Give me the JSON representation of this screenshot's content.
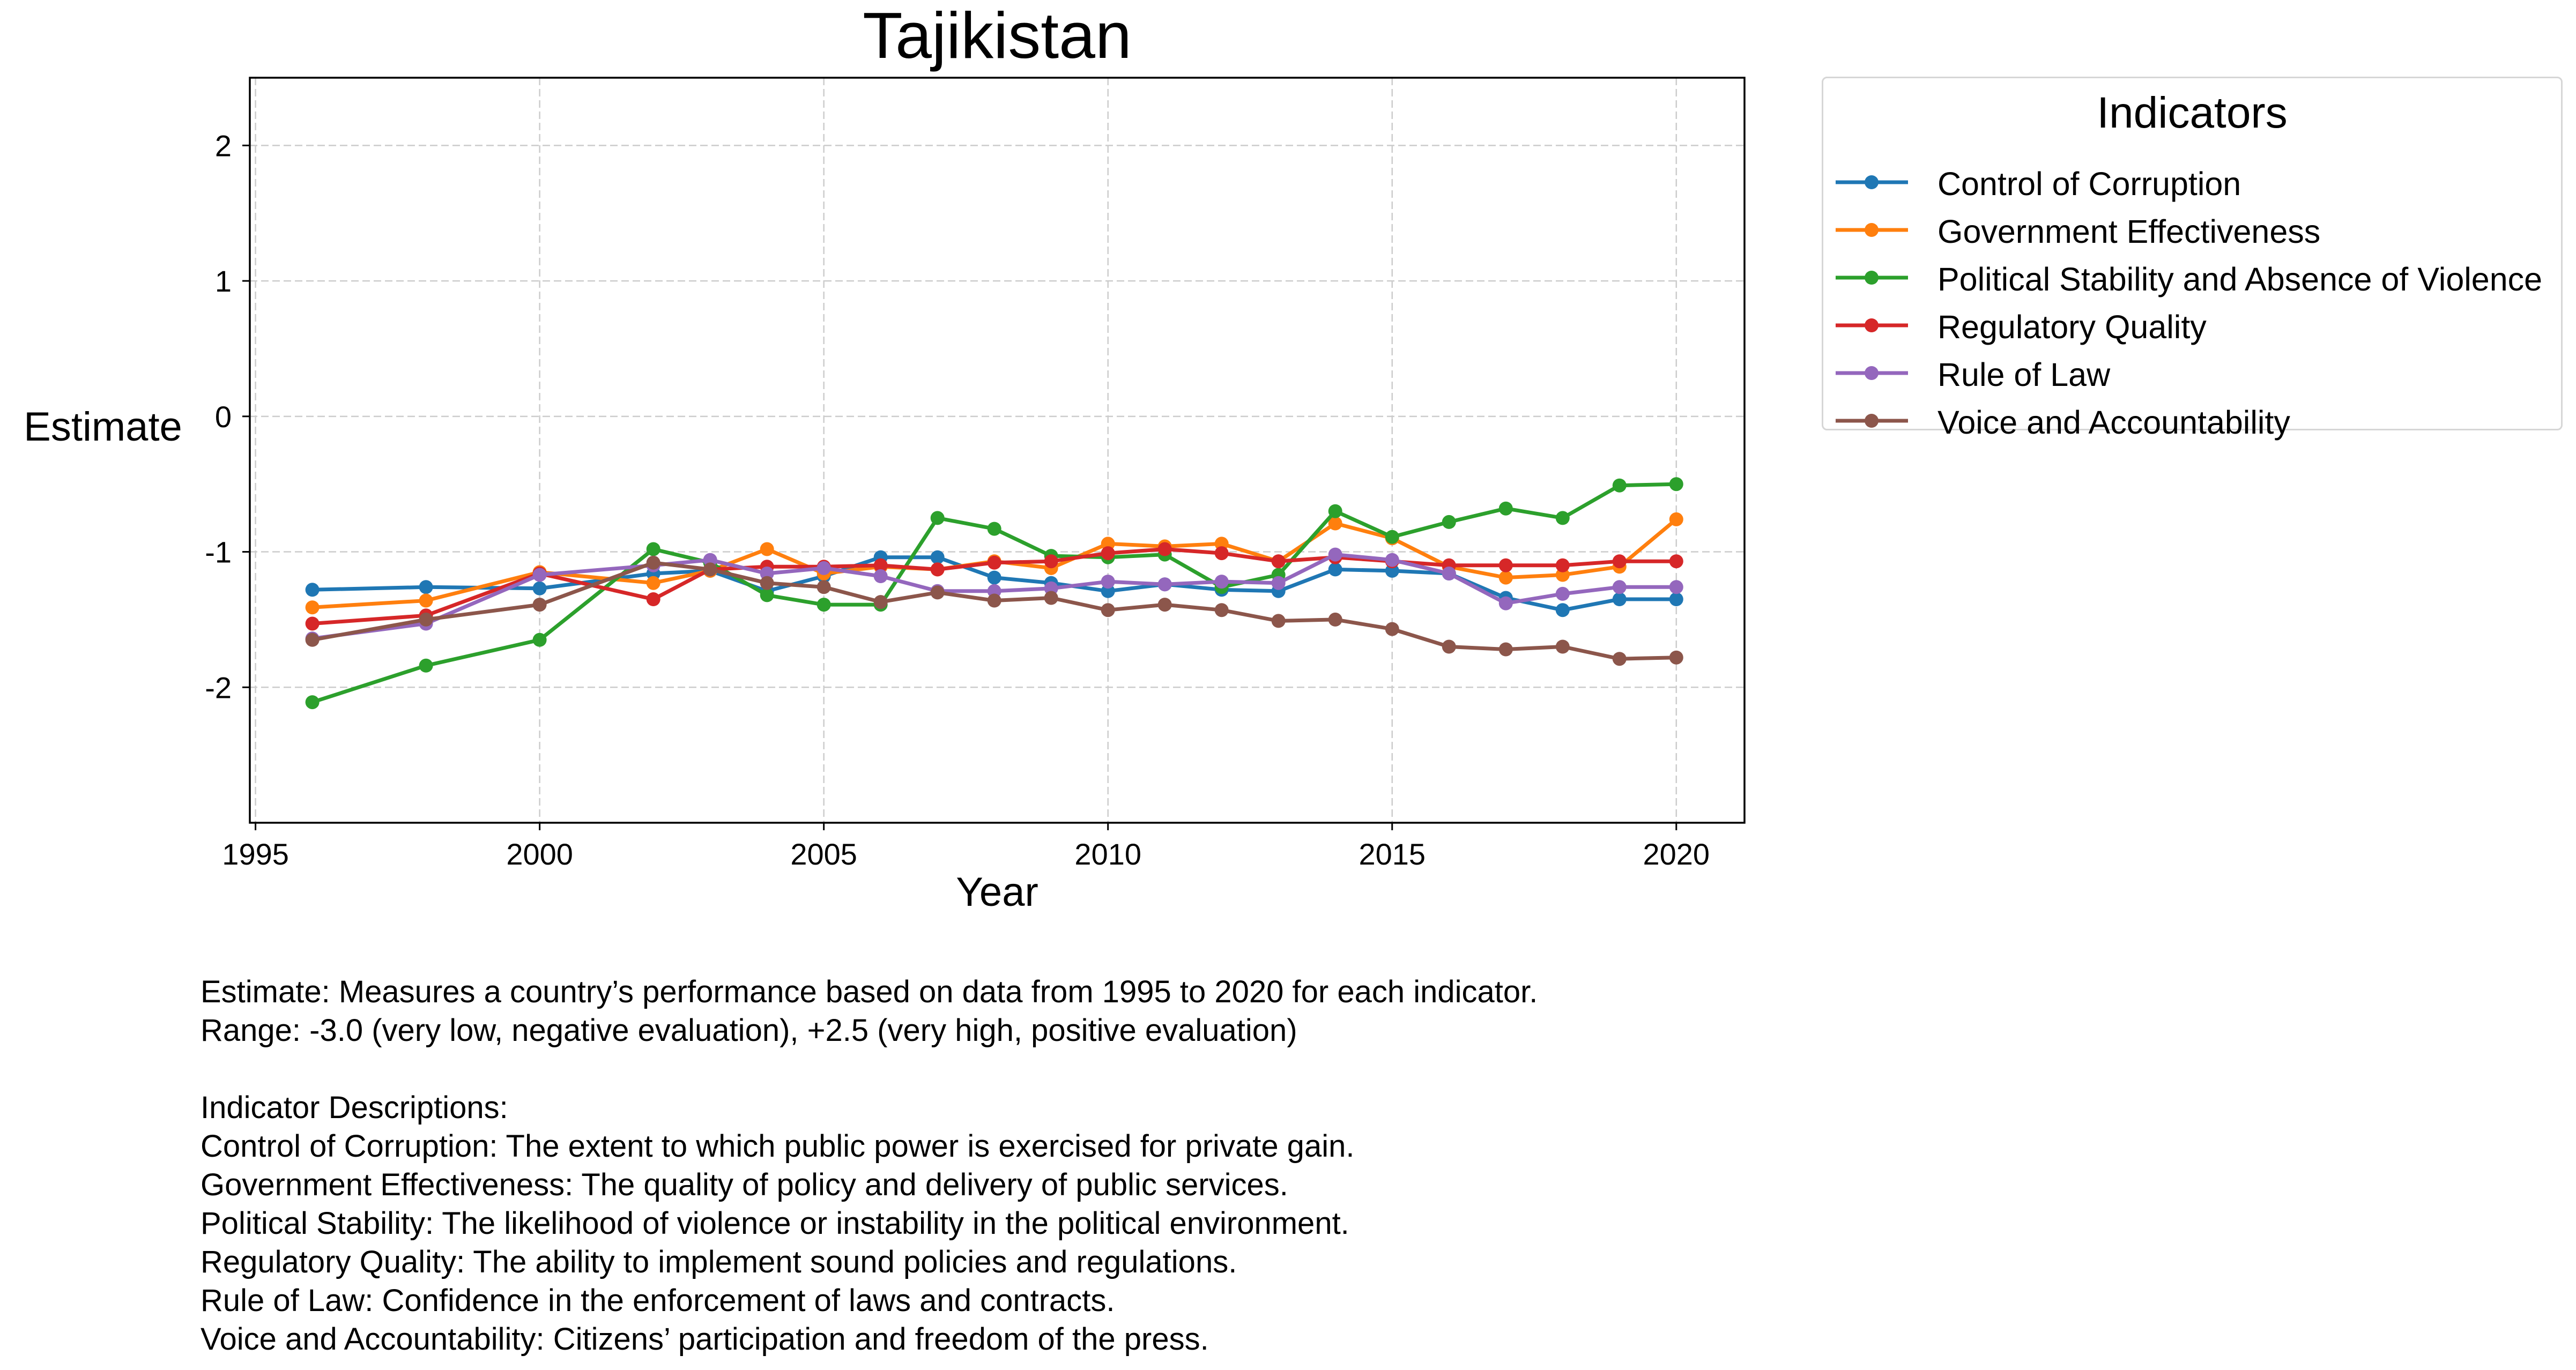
{
  "chart_data": {
    "type": "line",
    "title": "Tajikistan",
    "xlabel": "Year",
    "ylabel": "Estimate",
    "xlim": [
      1994.9,
      2021.2
    ],
    "ylim": [
      -3.0,
      2.5
    ],
    "xticks": [
      1995,
      2000,
      2005,
      2010,
      2015,
      2020
    ],
    "yticks": [
      -2,
      -1,
      0,
      1,
      2
    ],
    "grid": true,
    "legend_title": "Indicators",
    "legend_position": "outside-top-right",
    "x": [
      1996,
      1998,
      2000,
      2002,
      2003,
      2004,
      2005,
      2006,
      2007,
      2008,
      2009,
      2010,
      2011,
      2012,
      2013,
      2014,
      2015,
      2016,
      2017,
      2018,
      2019,
      2020
    ],
    "series": [
      {
        "name": "Control of Corruption",
        "color": "#1f77b4",
        "values": [
          -1.28,
          -1.26,
          -1.27,
          -1.16,
          -1.14,
          -1.29,
          -1.18,
          -1.04,
          -1.04,
          -1.19,
          -1.23,
          -1.29,
          -1.24,
          -1.28,
          -1.29,
          -1.13,
          -1.14,
          -1.16,
          -1.34,
          -1.43,
          -1.35,
          -1.35
        ]
      },
      {
        "name": "Government Effectiveness",
        "color": "#ff7f0e",
        "values": [
          -1.41,
          -1.36,
          -1.15,
          -1.23,
          -1.14,
          -0.98,
          -1.16,
          -1.11,
          -1.13,
          -1.07,
          -1.12,
          -0.94,
          -0.96,
          -0.94,
          -1.07,
          -0.79,
          -0.9,
          -1.11,
          -1.19,
          -1.17,
          -1.11,
          -0.76
        ]
      },
      {
        "name": "Political Stability and Absence of Violence",
        "color": "#2ca02c",
        "values": [
          -2.11,
          -1.84,
          -1.65,
          -0.98,
          -1.08,
          -1.32,
          -1.39,
          -1.39,
          -0.75,
          -0.83,
          -1.03,
          -1.04,
          -1.02,
          -1.26,
          -1.17,
          -0.7,
          -0.89,
          -0.78,
          -0.68,
          -0.75,
          -0.51,
          -0.5
        ]
      },
      {
        "name": "Regulatory Quality",
        "color": "#d62728",
        "values": [
          -1.53,
          -1.47,
          -1.16,
          -1.35,
          -1.13,
          -1.11,
          -1.11,
          -1.1,
          -1.13,
          -1.08,
          -1.07,
          -1.01,
          -0.98,
          -1.01,
          -1.07,
          -1.04,
          -1.07,
          -1.1,
          -1.1,
          -1.1,
          -1.07,
          -1.07
        ]
      },
      {
        "name": "Rule of Law",
        "color": "#9467bd",
        "values": [
          -1.64,
          -1.53,
          -1.17,
          -1.1,
          -1.06,
          -1.16,
          -1.12,
          -1.18,
          -1.29,
          -1.29,
          -1.27,
          -1.22,
          -1.24,
          -1.22,
          -1.23,
          -1.02,
          -1.06,
          -1.16,
          -1.38,
          -1.31,
          -1.26,
          -1.26
        ]
      },
      {
        "name": "Voice and Accountability",
        "color": "#8c564b",
        "values": [
          -1.65,
          -1.5,
          -1.39,
          -1.08,
          -1.13,
          -1.23,
          -1.26,
          -1.37,
          -1.3,
          -1.36,
          -1.34,
          -1.43,
          -1.39,
          -1.43,
          -1.51,
          -1.5,
          -1.57,
          -1.7,
          -1.72,
          -1.7,
          -1.79,
          -1.78
        ]
      }
    ]
  },
  "notes": {
    "line1": "Estimate: Measures a country’s performance based on data from 1995 to 2020 for each indicator.",
    "line2": "Range: -3.0 (very low, negative evaluation), +2.5 (very high, positive evaluation)",
    "heading": "Indicator Descriptions:",
    "desc": [
      "Control of Corruption: The extent to which public power is exercised for private gain.",
      "Government Effectiveness: The quality of policy and delivery of public services.",
      "Political Stability: The likelihood of violence or instability in the political environment.",
      "Regulatory Quality: The ability to implement sound policies and regulations.",
      "Rule of Law: Confidence in the enforcement of laws and contracts.",
      "Voice and Accountability: Citizens’ participation and freedom of the press."
    ]
  }
}
